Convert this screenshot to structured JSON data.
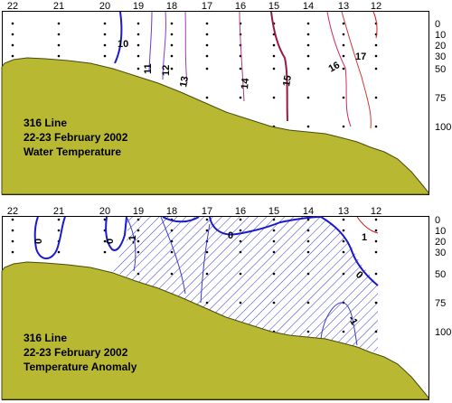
{
  "chart_data": [
    {
      "type": "contour",
      "caption_lines": [
        "316 Line",
        "22-23 February 2002",
        "Water Temperature"
      ],
      "stations": [
        "22",
        "21",
        "20",
        "19",
        "18",
        "17",
        "16",
        "15",
        "14",
        "13",
        "12"
      ],
      "depth_ticks": [
        "0",
        "10",
        "20",
        "30",
        "50",
        "75",
        "100"
      ],
      "depth_values": [
        0,
        10,
        20,
        30,
        50,
        75,
        100
      ],
      "contour_labels": [
        "10",
        "11",
        "12",
        "13",
        "14",
        "15",
        "16",
        "17"
      ],
      "colors": {
        "cold": "#1a1acc",
        "warm": "#cc1a4d",
        "bottom": "#b8b832",
        "accent": "#7a1030"
      }
    },
    {
      "type": "contour",
      "caption_lines": [
        "316 Line",
        "22-23 February 2002",
        "Temperature Anomaly"
      ],
      "stations": [
        "22",
        "21",
        "20",
        "19",
        "18",
        "17",
        "16",
        "15",
        "14",
        "13",
        "12"
      ],
      "depth_ticks": [
        "0",
        "10",
        "20",
        "30",
        "50",
        "75",
        "100"
      ],
      "depth_values": [
        0,
        10,
        20,
        30,
        50,
        75,
        100
      ],
      "contour_labels": [
        "0",
        "0",
        "-1",
        "0",
        "0",
        "-1",
        "1"
      ],
      "colors": {
        "zero_line": "#1a1acc",
        "negative_hatch": "#3a3ad0",
        "positive": "#cc1a1a",
        "bottom": "#b8b832"
      }
    }
  ]
}
